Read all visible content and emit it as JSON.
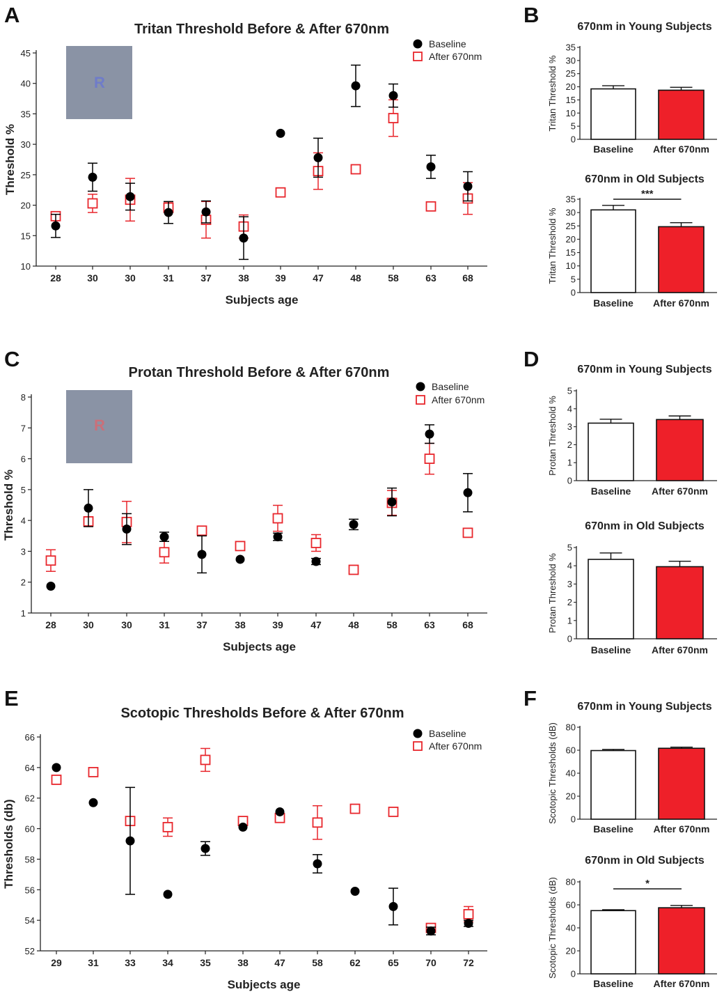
{
  "colors": {
    "baseline": "#000000",
    "after": "#e8262c",
    "after_bar_fill": "#ee2029",
    "stimulus_bg": "#8a93a5"
  },
  "panels": {
    "A": "A",
    "B": "B",
    "C": "C",
    "D": "D",
    "E": "E",
    "F": "F"
  },
  "chart_data": [
    {
      "id": "A",
      "type": "scatter",
      "title": "Tritan Threshold Before & After 670nm",
      "xlabel": "Subjects age",
      "ylabel": "Threshold %",
      "ylim": [
        10,
        45
      ],
      "yticks": [
        10,
        15,
        20,
        25,
        30,
        35,
        40,
        45
      ],
      "categories": [
        "28",
        "30",
        "30",
        "31",
        "37",
        "38",
        "39",
        "47",
        "48",
        "58",
        "63",
        "68"
      ],
      "stimulus_letter": "R",
      "stimulus_letter_color": "#6f7cc9",
      "legend": [
        "Baseline",
        "After 670nm"
      ],
      "series": [
        {
          "name": "Baseline",
          "values": [
            16.6,
            24.6,
            21.4,
            18.8,
            18.9,
            14.6,
            31.8,
            27.8,
            39.6,
            38.0,
            26.3,
            23.1
          ],
          "errors": [
            1.9,
            2.3,
            2.2,
            1.8,
            1.8,
            3.5,
            0,
            3.2,
            3.4,
            1.9,
            1.9,
            2.4
          ]
        },
        {
          "name": "After 670nm",
          "values": [
            18.2,
            20.3,
            20.9,
            19.6,
            17.6,
            16.5,
            22.1,
            25.6,
            25.9,
            34.3,
            19.8,
            21.1
          ],
          "errors": [
            0.4,
            1.5,
            3.5,
            0.8,
            3.0,
            1.9,
            0,
            3.0,
            0.4,
            3.0,
            0,
            2.6
          ]
        }
      ]
    },
    {
      "id": "B1",
      "type": "bar",
      "title": "670nm in Young Subjects",
      "ylabel": "Tritan Threshold %",
      "ylim": [
        0,
        35
      ],
      "yticks": [
        0,
        5,
        10,
        15,
        20,
        25,
        30,
        35
      ],
      "categories": [
        "Baseline",
        "After 670nm"
      ],
      "values": [
        19.2,
        18.7
      ],
      "errors": [
        1.2,
        1.1
      ],
      "significance": ""
    },
    {
      "id": "B2",
      "type": "bar",
      "title": "670nm in Old Subjects",
      "ylabel": "Tritan Threshold %",
      "ylim": [
        0,
        35
      ],
      "yticks": [
        0,
        5,
        10,
        15,
        20,
        25,
        30,
        35
      ],
      "categories": [
        "Baseline",
        "After 670nm"
      ],
      "values": [
        31.0,
        24.7
      ],
      "errors": [
        1.7,
        1.5
      ],
      "significance": "***"
    },
    {
      "id": "C",
      "type": "scatter",
      "title": "Protan Threshold Before & After 670nm",
      "xlabel": "Subjects age",
      "ylabel": "Threshold %",
      "ylim": [
        1,
        8
      ],
      "yticks": [
        1,
        2,
        3,
        4,
        5,
        6,
        7,
        8
      ],
      "categories": [
        "28",
        "30",
        "30",
        "31",
        "37",
        "38",
        "39",
        "47",
        "48",
        "58",
        "63",
        "68"
      ],
      "stimulus_letter": "R",
      "stimulus_letter_color": "#c9707a",
      "legend": [
        "Baseline",
        "After 670nm"
      ],
      "series": [
        {
          "name": "Baseline",
          "values": [
            1.87,
            4.4,
            3.72,
            3.47,
            2.9,
            2.74,
            3.47,
            2.67,
            3.87,
            4.6,
            6.8,
            4.9
          ],
          "errors": [
            0,
            0.6,
            0.5,
            0.15,
            0.6,
            0,
            0.12,
            0.1,
            0.17,
            0.45,
            0.3,
            0.62
          ]
        },
        {
          "name": "After 670nm",
          "values": [
            2.7,
            3.97,
            3.95,
            2.97,
            3.67,
            3.17,
            4.07,
            3.27,
            2.4,
            4.57,
            6.0,
            3.6
          ],
          "errors": [
            0.35,
            0.15,
            0.67,
            0.35,
            0.12,
            0,
            0.42,
            0.27,
            0,
            0.4,
            0.5,
            0
          ]
        }
      ]
    },
    {
      "id": "D1",
      "type": "bar",
      "title": "670nm in Young Subjects",
      "ylabel": "Protan Threshold %",
      "ylim": [
        0,
        5
      ],
      "yticks": [
        0,
        1,
        2,
        3,
        4,
        5
      ],
      "categories": [
        "Baseline",
        "After 670nm"
      ],
      "values": [
        3.2,
        3.4
      ],
      "errors": [
        0.22,
        0.2
      ],
      "significance": ""
    },
    {
      "id": "D2",
      "type": "bar",
      "title": "670nm in Old Subjects",
      "ylabel": "Protan Threshold %",
      "ylim": [
        0,
        5
      ],
      "yticks": [
        0,
        1,
        2,
        3,
        4,
        5
      ],
      "categories": [
        "Baseline",
        "After 670nm"
      ],
      "values": [
        4.35,
        3.95
      ],
      "errors": [
        0.35,
        0.3
      ],
      "significance": ""
    },
    {
      "id": "E",
      "type": "scatter",
      "title": "Scotopic Thresholds Before & After 670nm",
      "xlabel": "Subjects age",
      "ylabel": "Thresholds (db)",
      "ylim": [
        52,
        66
      ],
      "yticks": [
        52,
        54,
        56,
        58,
        60,
        62,
        64,
        66
      ],
      "categories": [
        "29",
        "31",
        "33",
        "34",
        "35",
        "38",
        "47",
        "58",
        "62",
        "65",
        "70",
        "72"
      ],
      "stimulus_letter": "",
      "stimulus_letter_color": "",
      "legend": [
        "Baseline",
        "After 670nm"
      ],
      "series": [
        {
          "name": "Baseline",
          "values": [
            64.0,
            61.7,
            59.2,
            55.7,
            58.7,
            60.1,
            61.1,
            57.7,
            55.9,
            54.9,
            53.3,
            53.8
          ],
          "errors": [
            0,
            0,
            3.5,
            0,
            0.45,
            0,
            0,
            0.6,
            0,
            1.2,
            0.25,
            0.2
          ]
        },
        {
          "name": "After 670nm",
          "values": [
            63.2,
            63.7,
            60.5,
            60.1,
            64.5,
            60.5,
            60.7,
            60.4,
            61.3,
            61.1,
            53.5,
            54.4
          ],
          "errors": [
            0,
            0,
            0,
            0.6,
            0.75,
            0,
            0,
            1.1,
            0.15,
            0.15,
            0.15,
            0.5
          ]
        }
      ]
    },
    {
      "id": "F1",
      "type": "bar",
      "title": "670nm in Young Subjects",
      "ylabel": "Scotopic Thresholds (dB)",
      "ylim": [
        0,
        80
      ],
      "yticks": [
        0,
        20,
        40,
        60,
        80
      ],
      "categories": [
        "Baseline",
        "After 670nm"
      ],
      "values": [
        59.7,
        61.7
      ],
      "errors": [
        1.0,
        1.0
      ],
      "significance": ""
    },
    {
      "id": "F2",
      "type": "bar",
      "title": "670nm in Old Subjects",
      "ylabel": "Scotopic Thresholds (dB)",
      "ylim": [
        0,
        80
      ],
      "yticks": [
        0,
        20,
        40,
        60,
        80
      ],
      "categories": [
        "Baseline",
        "After 670nm"
      ],
      "values": [
        55.0,
        57.5
      ],
      "errors": [
        0.8,
        2.0
      ],
      "significance": "*"
    }
  ]
}
